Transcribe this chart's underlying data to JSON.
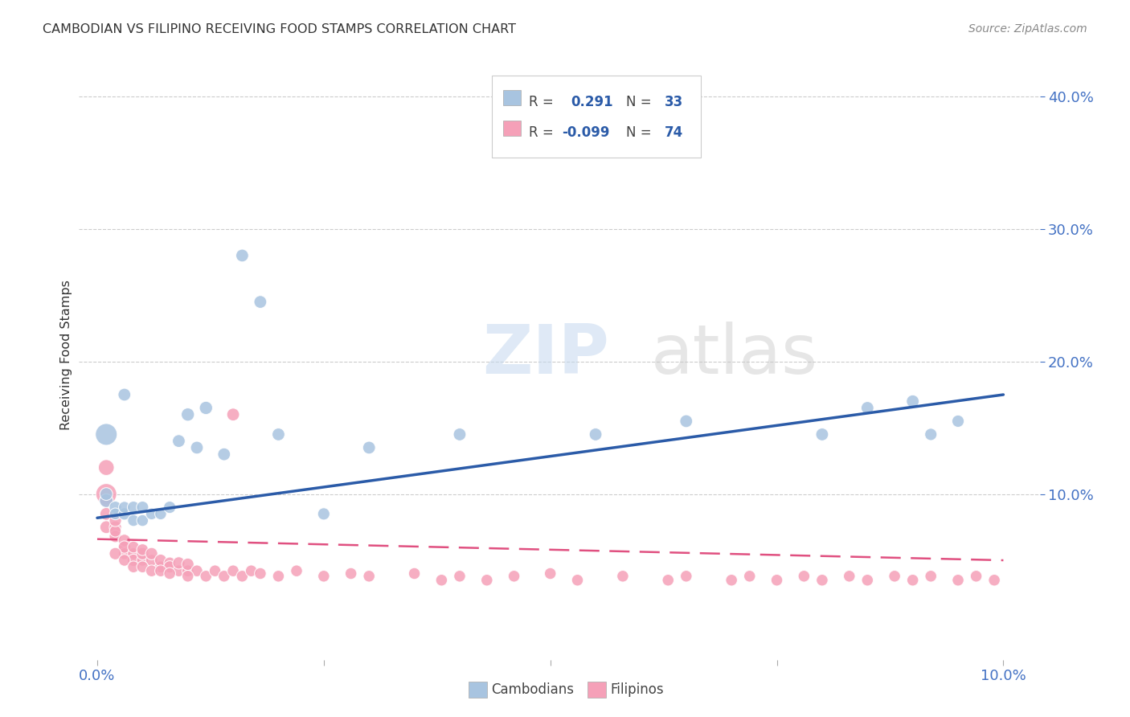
{
  "title": "CAMBODIAN VS FILIPINO RECEIVING FOOD STAMPS CORRELATION CHART",
  "source": "Source: ZipAtlas.com",
  "ylabel": "Receiving Food Stamps",
  "watermark_zip": "ZIP",
  "watermark_atlas": "atlas",
  "cambodian_color": "#a8c4e0",
  "cambodian_line_color": "#2B5BA8",
  "filipino_color": "#f5a0b8",
  "filipino_line_color": "#e05080",
  "legend_R_cambodian": "0.291",
  "legend_N_cambodian": "33",
  "legend_R_filipino": "-0.099",
  "legend_N_filipino": "74",
  "background_color": "#ffffff",
  "title_color": "#333333",
  "axis_label_color": "#4472c4",
  "ylabel_color": "#333333",
  "grid_color": "#cccccc",
  "source_color": "#888888",
  "xlim": [
    -0.002,
    0.104
  ],
  "ylim": [
    -0.025,
    0.435
  ],
  "xticks": [
    0.0,
    0.025,
    0.05,
    0.075,
    0.1
  ],
  "yticks_right": [
    0.1,
    0.2,
    0.3,
    0.4
  ],
  "ytick_labels_right": [
    "10.0%",
    "20.0%",
    "30.0%",
    "40.0%"
  ],
  "cam_trend_x": [
    0.0,
    0.1
  ],
  "cam_trend_y": [
    0.082,
    0.175
  ],
  "fil_trend_x": [
    0.0,
    0.1
  ],
  "fil_trend_y": [
    0.066,
    0.05
  ],
  "cam_points_x": [
    0.001,
    0.001,
    0.001,
    0.002,
    0.002,
    0.003,
    0.003,
    0.004,
    0.004,
    0.005,
    0.005,
    0.006,
    0.007,
    0.008,
    0.009,
    0.01,
    0.011,
    0.012,
    0.014,
    0.016,
    0.018,
    0.02,
    0.025,
    0.03,
    0.04,
    0.055,
    0.065,
    0.08,
    0.085,
    0.09,
    0.092,
    0.095,
    0.003
  ],
  "cam_points_y": [
    0.145,
    0.095,
    0.1,
    0.09,
    0.085,
    0.085,
    0.09,
    0.08,
    0.09,
    0.08,
    0.09,
    0.085,
    0.085,
    0.09,
    0.14,
    0.16,
    0.135,
    0.165,
    0.13,
    0.28,
    0.245,
    0.145,
    0.085,
    0.135,
    0.145,
    0.145,
    0.155,
    0.145,
    0.165,
    0.17,
    0.145,
    0.155,
    0.175
  ],
  "cam_points_size": [
    380,
    150,
    130,
    120,
    110,
    120,
    110,
    110,
    120,
    110,
    120,
    110,
    110,
    120,
    130,
    140,
    130,
    140,
    130,
    130,
    130,
    130,
    120,
    130,
    130,
    130,
    130,
    130,
    130,
    130,
    120,
    120,
    130
  ],
  "fil_points_x": [
    0.001,
    0.001,
    0.001,
    0.001,
    0.002,
    0.002,
    0.002,
    0.002,
    0.003,
    0.003,
    0.003,
    0.003,
    0.004,
    0.004,
    0.004,
    0.005,
    0.005,
    0.005,
    0.006,
    0.006,
    0.007,
    0.007,
    0.008,
    0.008,
    0.009,
    0.009,
    0.01,
    0.01,
    0.011,
    0.012,
    0.013,
    0.014,
    0.015,
    0.016,
    0.017,
    0.018,
    0.02,
    0.022,
    0.025,
    0.028,
    0.03,
    0.035,
    0.038,
    0.04,
    0.043,
    0.046,
    0.05,
    0.053,
    0.058,
    0.063,
    0.065,
    0.07,
    0.072,
    0.075,
    0.078,
    0.08,
    0.083,
    0.085,
    0.088,
    0.09,
    0.092,
    0.095,
    0.097,
    0.099,
    0.001,
    0.002,
    0.003,
    0.004,
    0.005,
    0.006,
    0.007,
    0.008,
    0.01,
    0.015
  ],
  "fil_points_y": [
    0.1,
    0.085,
    0.095,
    0.075,
    0.075,
    0.068,
    0.072,
    0.08,
    0.06,
    0.065,
    0.055,
    0.06,
    0.055,
    0.05,
    0.06,
    0.05,
    0.055,
    0.058,
    0.05,
    0.055,
    0.045,
    0.05,
    0.048,
    0.045,
    0.042,
    0.048,
    0.042,
    0.047,
    0.042,
    0.038,
    0.042,
    0.038,
    0.042,
    0.038,
    0.042,
    0.04,
    0.038,
    0.042,
    0.038,
    0.04,
    0.038,
    0.04,
    0.035,
    0.038,
    0.035,
    0.038,
    0.04,
    0.035,
    0.038,
    0.035,
    0.038,
    0.035,
    0.038,
    0.035,
    0.038,
    0.035,
    0.038,
    0.035,
    0.038,
    0.035,
    0.038,
    0.035,
    0.038,
    0.035,
    0.12,
    0.055,
    0.05,
    0.045,
    0.045,
    0.042,
    0.042,
    0.04,
    0.038,
    0.16
  ],
  "fil_points_size": [
    350,
    130,
    140,
    130,
    120,
    120,
    110,
    120,
    110,
    120,
    110,
    120,
    110,
    120,
    110,
    110,
    120,
    110,
    110,
    120,
    110,
    120,
    110,
    120,
    110,
    120,
    110,
    120,
    110,
    110,
    110,
    110,
    110,
    110,
    110,
    110,
    110,
    110,
    110,
    110,
    110,
    110,
    110,
    110,
    110,
    110,
    110,
    110,
    110,
    110,
    110,
    110,
    110,
    110,
    110,
    110,
    110,
    110,
    110,
    110,
    110,
    110,
    110,
    110,
    200,
    120,
    110,
    110,
    110,
    110,
    110,
    110,
    110,
    130
  ]
}
